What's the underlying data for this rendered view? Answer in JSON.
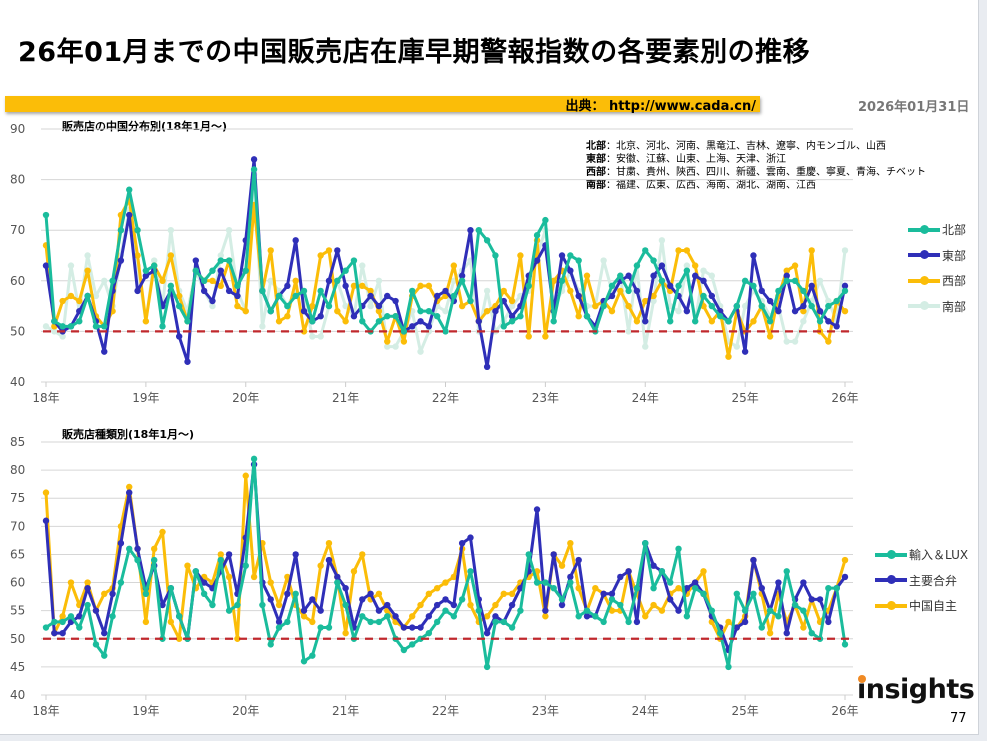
{
  "title": "26年01月までの中国販売店在庫早期警報指数の各要素別の推移",
  "source": "出典： http://www.cada.cn/",
  "date": "2026年01月31日",
  "page_number": "77",
  "logo_text": "insights",
  "colors": {
    "accent_bar": "#fbbd08",
    "threshold": "#c0282d",
    "north": "#1abc9c",
    "east": "#2f2fb8",
    "west": "#fbbd08",
    "south": "#d4ede4"
  },
  "region_notes": [
    {
      "label": "北部",
      "text": "：北京、河北、河南、黒竜江、吉林、遼寧、内モンゴル、山西"
    },
    {
      "label": "東部",
      "text": "：安徽、江蘇、山東、上海、天津、浙江"
    },
    {
      "label": "西部",
      "text": "：甘粛、貴州、陝西、四川、新疆、雲南、重慶、寧夏、青海、チベット"
    },
    {
      "label": "南部",
      "text": "：福建、広東、広西、海南、湖北、湖南、江西"
    }
  ],
  "chart_data": [
    {
      "type": "line",
      "title": "販売店の中国分布別(18年1月～)",
      "x_start": "2018-01",
      "x_end": "2026-01",
      "x_unit": "month",
      "xticks": [
        "18年",
        "19年",
        "20年",
        "21年",
        "22年",
        "23年",
        "24年",
        "25年",
        "26年"
      ],
      "ylim": [
        40,
        90
      ],
      "yticks": [
        40,
        50,
        60,
        70,
        80,
        90
      ],
      "grid": true,
      "legend": "right",
      "threshold": 50,
      "series": [
        {
          "name": "北部",
          "color": "#1abc9c",
          "values": [
            73,
            52,
            51,
            51,
            52,
            57,
            51,
            51,
            60,
            70,
            78,
            70,
            62,
            63,
            51,
            59,
            55,
            52,
            62,
            60,
            62,
            64,
            64,
            59,
            62,
            82,
            58,
            54,
            57,
            55,
            57,
            58,
            52,
            58,
            55,
            60,
            62,
            64,
            52,
            50,
            52,
            53,
            53,
            50,
            58,
            54,
            54,
            53,
            50,
            57,
            60,
            56,
            70,
            68,
            65,
            51,
            52,
            53,
            59,
            69,
            72,
            52,
            60,
            65,
            64,
            53,
            50,
            55,
            59,
            61,
            58,
            63,
            66,
            64,
            60,
            52,
            59,
            62,
            52,
            57,
            55,
            53,
            52,
            55,
            60,
            59,
            55,
            52,
            58,
            60,
            60,
            58,
            55,
            52,
            55,
            56,
            58
          ]
        },
        {
          "name": "東部",
          "color": "#2f2fb8",
          "values": [
            63,
            52,
            50,
            51,
            54,
            57,
            52,
            46,
            58,
            64,
            73,
            58,
            61,
            62,
            55,
            58,
            49,
            44,
            64,
            58,
            56,
            62,
            58,
            57,
            68,
            84,
            58,
            54,
            57,
            59,
            68,
            54,
            52,
            53,
            60,
            66,
            59,
            53,
            55,
            57,
            55,
            57,
            56,
            50,
            51,
            52,
            51,
            57,
            58,
            56,
            61,
            70,
            52,
            43,
            54,
            56,
            53,
            55,
            61,
            64,
            67,
            54,
            65,
            62,
            57,
            53,
            51,
            56,
            57,
            60,
            61,
            58,
            52,
            61,
            63,
            59,
            57,
            54,
            61,
            60,
            57,
            54,
            52,
            55,
            46,
            65,
            58,
            56,
            54,
            61,
            54,
            55,
            59,
            54,
            52,
            51,
            59
          ]
        },
        {
          "name": "西部",
          "color": "#fbbd08",
          "values": [
            67,
            51,
            56,
            57,
            56,
            62,
            53,
            51,
            54,
            73,
            76,
            65,
            52,
            63,
            60,
            65,
            57,
            52,
            62,
            60,
            60,
            59,
            64,
            55,
            54,
            75,
            58,
            66,
            52,
            53,
            60,
            50,
            55,
            65,
            66,
            54,
            52,
            59,
            59,
            58,
            54,
            48,
            53,
            48,
            57,
            59,
            59,
            56,
            57,
            63,
            55,
            56,
            52,
            54,
            55,
            58,
            56,
            65,
            49,
            68,
            49,
            60,
            62,
            58,
            53,
            61,
            55,
            56,
            54,
            58,
            55,
            52,
            56,
            57,
            60,
            58,
            66,
            66,
            63,
            55,
            52,
            54,
            45,
            54,
            50,
            52,
            55,
            49,
            57,
            62,
            63,
            54,
            66,
            50,
            48,
            56,
            54
          ]
        },
        {
          "name": "南部",
          "color": "#d4ede4",
          "values": [
            51,
            50,
            49,
            63,
            54,
            65,
            57,
            60,
            55,
            65,
            74,
            63,
            52,
            64,
            55,
            70,
            58,
            54,
            62,
            58,
            55,
            65,
            70,
            58,
            54,
            81,
            51,
            60,
            58,
            55,
            58,
            57,
            49,
            49,
            55,
            60,
            55,
            53,
            63,
            55,
            60,
            47,
            47,
            50,
            54,
            46,
            50,
            55,
            54,
            60,
            62,
            64,
            50,
            58,
            50,
            52,
            55,
            57,
            58,
            65,
            70,
            55,
            58,
            62,
            58,
            55,
            55,
            64,
            58,
            61,
            50,
            63,
            47,
            56,
            68,
            55,
            54,
            63,
            52,
            62,
            61,
            55,
            48,
            47,
            55,
            58,
            56,
            53,
            55,
            48,
            48,
            52,
            56,
            60,
            56,
            52,
            66
          ]
        }
      ]
    },
    {
      "type": "line",
      "title": "販売店種類別(18年1月～)",
      "x_start": "2018-01",
      "x_end": "2026-01",
      "x_unit": "month",
      "xticks": [
        "18年",
        "19年",
        "20年",
        "21年",
        "22年",
        "23年",
        "24年",
        "25年",
        "26年"
      ],
      "ylim": [
        40,
        85
      ],
      "yticks": [
        40,
        45,
        50,
        55,
        60,
        65,
        70,
        75,
        80,
        85
      ],
      "grid": true,
      "legend": "right",
      "threshold": 50,
      "series": [
        {
          "name": "輸入＆LUX",
          "color": "#1abc9c",
          "values": [
            52,
            53,
            53,
            54,
            52,
            56,
            49,
            47,
            54,
            60,
            66,
            64,
            58,
            64,
            50,
            59,
            54,
            50,
            62,
            58,
            56,
            64,
            55,
            56,
            63,
            82,
            56,
            49,
            52,
            53,
            58,
            46,
            47,
            52,
            52,
            60,
            56,
            50,
            54,
            53,
            53,
            54,
            50,
            48,
            49,
            50,
            51,
            53,
            55,
            54,
            57,
            62,
            55,
            45,
            53,
            53,
            52,
            55,
            65,
            60,
            60,
            59,
            57,
            60,
            54,
            55,
            54,
            53,
            57,
            56,
            53,
            59,
            67,
            59,
            62,
            60,
            66,
            54,
            59,
            58,
            55,
            51,
            45,
            58,
            55,
            58,
            52,
            55,
            54,
            62,
            56,
            55,
            51,
            50,
            59,
            59,
            49
          ]
        },
        {
          "name": "主要合弁",
          "color": "#2f2fb8",
          "values": [
            71,
            51,
            51,
            53,
            54,
            59,
            55,
            51,
            58,
            67,
            76,
            66,
            59,
            63,
            56,
            59,
            54,
            50,
            62,
            60,
            59,
            62,
            65,
            58,
            68,
            81,
            60,
            57,
            53,
            58,
            65,
            55,
            57,
            55,
            64,
            61,
            59,
            52,
            57,
            58,
            55,
            56,
            54,
            52,
            52,
            52,
            54,
            56,
            57,
            56,
            67,
            68,
            57,
            51,
            54,
            53,
            56,
            59,
            62,
            73,
            55,
            65,
            56,
            61,
            64,
            54,
            54,
            58,
            58,
            61,
            62,
            53,
            67,
            63,
            62,
            57,
            55,
            59,
            60,
            58,
            54,
            52,
            48,
            52,
            53,
            64,
            59,
            55,
            60,
            51,
            57,
            60,
            57,
            57,
            53,
            59,
            61
          ]
        },
        {
          "name": "中国自主",
          "color": "#fbbd08",
          "values": [
            76,
            51,
            54,
            60,
            56,
            60,
            55,
            58,
            59,
            70,
            77,
            66,
            53,
            66,
            69,
            53,
            50,
            63,
            59,
            61,
            60,
            65,
            61,
            50,
            79,
            61,
            67,
            60,
            56,
            61,
            56,
            54,
            53,
            63,
            67,
            61,
            51,
            62,
            65,
            57,
            58,
            55,
            53,
            52,
            54,
            56,
            58,
            59,
            60,
            61,
            66,
            56,
            53,
            54,
            56,
            58,
            58,
            60,
            61,
            62,
            54,
            65,
            63,
            67,
            59,
            55,
            59,
            58,
            55,
            55,
            62,
            58,
            54,
            56,
            55,
            58,
            59,
            58,
            60,
            62,
            53,
            50,
            53,
            52,
            54,
            64,
            58,
            51,
            58,
            53,
            56,
            52,
            57,
            53,
            55,
            59,
            64
          ]
        }
      ]
    }
  ]
}
